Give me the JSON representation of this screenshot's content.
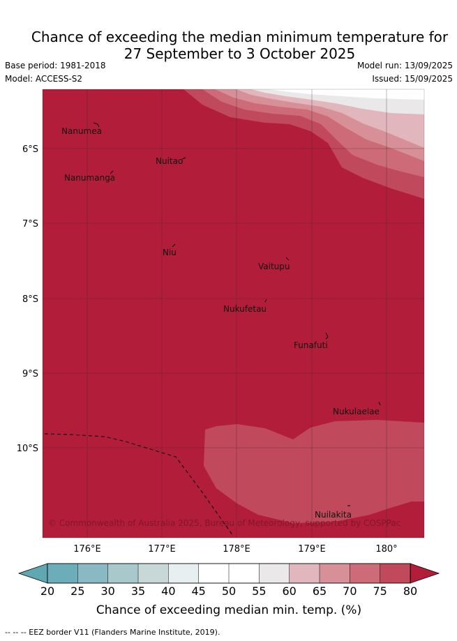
{
  "header": {
    "title_line1": "Chance of exceeding the median minimum temperature for",
    "title_line2": "27 September to 3 October 2025",
    "base_period": "Base period: 1981-2018",
    "model": "Model: ACCESS-S2",
    "model_run": "Model run: 13/09/2025",
    "issued": "Issued: 15/09/2025"
  },
  "map": {
    "lat_labels": [
      "6°S",
      "7°S",
      "8°S",
      "9°S",
      "10°S"
    ],
    "lon_labels": [
      "176°E",
      "177°E",
      "178°E",
      "179°E",
      "180°"
    ],
    "islands": [
      "Nanumea",
      "Nuitao",
      "Nanumanga",
      "Niu",
      "Vaitupu",
      "Nukufetau",
      "Funafuti",
      "Nukulaelae",
      "Nuilakita"
    ],
    "copyright": "© Commonwealth of Australia 2025, Bureau of Meteorology, supported by COSPPac",
    "colors": {
      "80": "#b21e3a",
      "75": "#c04a5c",
      "70": "#cd6b78",
      "65": "#d78f98",
      "60": "#e1b6bc",
      "55": "#ebe8ea",
      "50": "#ffffff"
    }
  },
  "colorbar": {
    "ticks": [
      "20",
      "25",
      "30",
      "35",
      "40",
      "45",
      "50",
      "55",
      "60",
      "65",
      "70",
      "75",
      "80"
    ],
    "colors": [
      "#6badb8",
      "#8ab9c3",
      "#a9c8cc",
      "#c8d8d9",
      "#e8eff1",
      "#ffffff",
      "#ffffff",
      "#ebe8ea",
      "#e1b6bc",
      "#d78f98",
      "#cd6b78",
      "#c04a5c"
    ],
    "low_color": "#5ea7b3",
    "high_color": "#b21e3a",
    "label": "Chance of exceeding median min. temp. (%)"
  },
  "footnote": "--  --  -- EEZ border V11 (Flanders Marine Institute, 2019)."
}
